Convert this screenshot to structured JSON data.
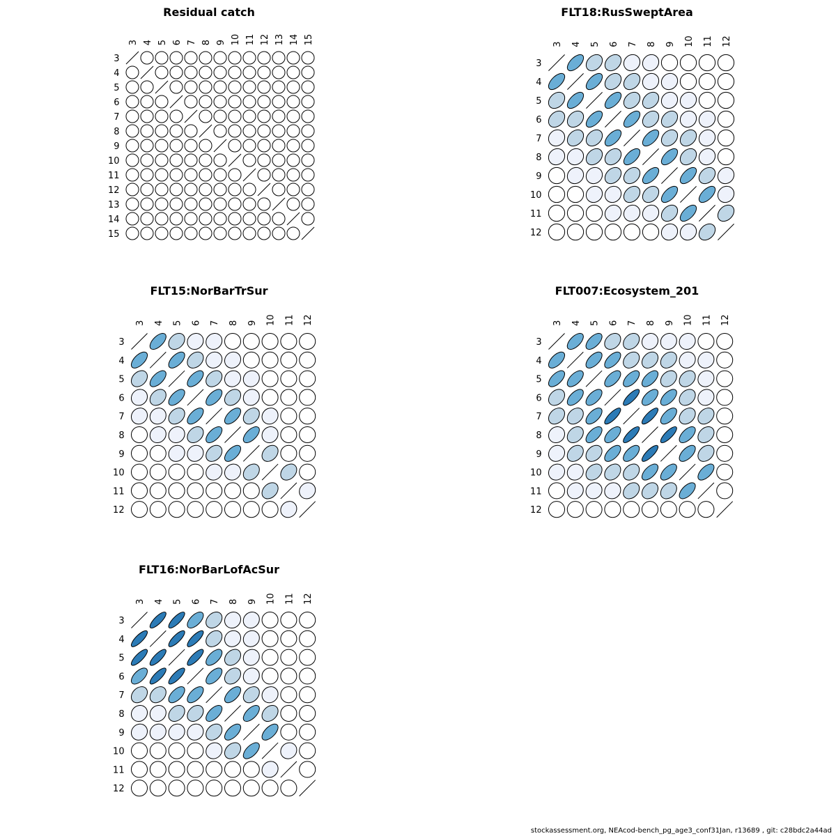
{
  "footer": "stockassessment.org, NEAcod-bench_pg_age3_conf31Jan, r13689 , git: c28bdc2a44ad",
  "chart_data": [
    {
      "type": "heatmap",
      "title": "Residual catch",
      "labels": [
        "3",
        "4",
        "5",
        "6",
        "7",
        "8",
        "9",
        "10",
        "11",
        "12",
        "13",
        "14",
        "15"
      ],
      "values": [
        [
          1,
          0,
          0,
          0,
          0,
          0,
          0,
          0,
          0,
          0,
          0,
          0,
          0
        ],
        [
          0,
          1,
          0,
          0,
          0,
          0,
          0,
          0,
          0,
          0,
          0,
          0,
          0
        ],
        [
          0,
          0,
          1,
          0,
          0,
          0,
          0,
          0,
          0,
          0,
          0,
          0,
          0
        ],
        [
          0,
          0,
          0,
          1,
          0,
          0,
          0,
          0,
          0,
          0,
          0,
          0,
          0
        ],
        [
          0,
          0,
          0,
          0,
          1,
          0,
          0,
          0,
          0,
          0,
          0,
          0,
          0
        ],
        [
          0,
          0,
          0,
          0,
          0,
          1,
          0,
          0,
          0,
          0,
          0,
          0,
          0
        ],
        [
          0,
          0,
          0,
          0,
          0,
          0,
          1,
          0,
          0,
          0,
          0,
          0,
          0
        ],
        [
          0,
          0,
          0,
          0,
          0,
          0,
          0,
          1,
          0,
          0,
          0,
          0,
          0
        ],
        [
          0,
          0,
          0,
          0,
          0,
          0,
          0,
          0,
          1,
          0,
          0,
          0,
          0
        ],
        [
          0,
          0,
          0,
          0,
          0,
          0,
          0,
          0,
          0,
          1,
          0,
          0,
          0
        ],
        [
          0,
          0,
          0,
          0,
          0,
          0,
          0,
          0,
          0,
          0,
          1,
          0,
          0
        ],
        [
          0,
          0,
          0,
          0,
          0,
          0,
          0,
          0,
          0,
          0,
          0,
          1,
          0
        ],
        [
          0,
          0,
          0,
          0,
          0,
          0,
          0,
          0,
          0,
          0,
          0,
          0,
          1
        ]
      ]
    },
    {
      "type": "heatmap",
      "title": "FLT18:RusSweptArea",
      "labels": [
        "3",
        "4",
        "5",
        "6",
        "7",
        "8",
        "9",
        "10",
        "11",
        "12"
      ],
      "values": [
        [
          1,
          0.6,
          0.3,
          0.3,
          0.1,
          0.1,
          0,
          0,
          0,
          0
        ],
        [
          0.6,
          1,
          0.6,
          0.3,
          0.3,
          0.1,
          0.1,
          0,
          0,
          0
        ],
        [
          0.3,
          0.6,
          1,
          0.6,
          0.3,
          0.3,
          0.1,
          0.1,
          0,
          0
        ],
        [
          0.3,
          0.3,
          0.6,
          1,
          0.6,
          0.3,
          0.3,
          0.1,
          0.1,
          0
        ],
        [
          0.1,
          0.3,
          0.3,
          0.6,
          1,
          0.6,
          0.3,
          0.3,
          0.1,
          0
        ],
        [
          0.1,
          0.1,
          0.3,
          0.3,
          0.6,
          1,
          0.6,
          0.3,
          0.1,
          0
        ],
        [
          0,
          0.1,
          0.1,
          0.3,
          0.3,
          0.6,
          1,
          0.6,
          0.3,
          0.1
        ],
        [
          0,
          0,
          0.1,
          0.1,
          0.3,
          0.3,
          0.6,
          1,
          0.6,
          0.1
        ],
        [
          0,
          0,
          0,
          0.1,
          0.1,
          0.1,
          0.3,
          0.6,
          1,
          0.3
        ],
        [
          0,
          0,
          0,
          0,
          0,
          0,
          0.1,
          0.1,
          0.3,
          1
        ]
      ]
    },
    {
      "type": "heatmap",
      "title": "FLT15:NorBarTrSur",
      "labels": [
        "3",
        "4",
        "5",
        "6",
        "7",
        "8",
        "9",
        "10",
        "11",
        "12"
      ],
      "values": [
        [
          1,
          0.6,
          0.3,
          0.1,
          0.1,
          0,
          0,
          0,
          0,
          0
        ],
        [
          0.6,
          1,
          0.6,
          0.3,
          0.1,
          0.1,
          0,
          0,
          0,
          0
        ],
        [
          0.3,
          0.6,
          1,
          0.6,
          0.3,
          0.1,
          0.1,
          0,
          0,
          0
        ],
        [
          0.1,
          0.3,
          0.6,
          1,
          0.6,
          0.3,
          0.1,
          0,
          0,
          0
        ],
        [
          0.1,
          0.1,
          0.3,
          0.6,
          1,
          0.6,
          0.3,
          0.1,
          0,
          0
        ],
        [
          0,
          0.1,
          0.1,
          0.3,
          0.6,
          1,
          0.6,
          0.1,
          0,
          0
        ],
        [
          0,
          0,
          0.1,
          0.1,
          0.3,
          0.6,
          1,
          0.3,
          0,
          0
        ],
        [
          0,
          0,
          0,
          0,
          0.1,
          0.1,
          0.3,
          1,
          0.3,
          0
        ],
        [
          0,
          0,
          0,
          0,
          0,
          0,
          0,
          0.3,
          1,
          0.1
        ],
        [
          0,
          0,
          0,
          0,
          0,
          0,
          0,
          0,
          0.1,
          1
        ]
      ]
    },
    {
      "type": "heatmap",
      "title": "FLT007:Ecosystem_201",
      "labels": [
        "3",
        "4",
        "5",
        "6",
        "7",
        "8",
        "9",
        "10",
        "11",
        "12"
      ],
      "values": [
        [
          1,
          0.6,
          0.6,
          0.3,
          0.3,
          0.1,
          0.1,
          0.1,
          0,
          0
        ],
        [
          0.6,
          1,
          0.6,
          0.6,
          0.3,
          0.3,
          0.3,
          0.1,
          0.1,
          0
        ],
        [
          0.6,
          0.6,
          1,
          0.6,
          0.6,
          0.6,
          0.3,
          0.3,
          0.1,
          0
        ],
        [
          0.3,
          0.6,
          0.6,
          1,
          0.8,
          0.6,
          0.6,
          0.3,
          0.1,
          0
        ],
        [
          0.3,
          0.3,
          0.6,
          0.8,
          1,
          0.8,
          0.6,
          0.3,
          0.3,
          0
        ],
        [
          0.1,
          0.3,
          0.6,
          0.6,
          0.8,
          1,
          0.8,
          0.6,
          0.3,
          0
        ],
        [
          0.1,
          0.3,
          0.3,
          0.6,
          0.6,
          0.8,
          1,
          0.6,
          0.3,
          0
        ],
        [
          0.1,
          0.1,
          0.3,
          0.3,
          0.3,
          0.6,
          0.6,
          1,
          0.6,
          0
        ],
        [
          0,
          0.1,
          0.1,
          0.1,
          0.3,
          0.3,
          0.3,
          0.6,
          1,
          0
        ],
        [
          0,
          0,
          0,
          0,
          0,
          0,
          0,
          0,
          0,
          1
        ]
      ]
    },
    {
      "type": "heatmap",
      "title": "FLT16:NorBarLofAcSur",
      "labels": [
        "3",
        "4",
        "5",
        "6",
        "7",
        "8",
        "9",
        "10",
        "11",
        "12"
      ],
      "values": [
        [
          1,
          0.8,
          0.8,
          0.6,
          0.3,
          0.1,
          0.1,
          0,
          0,
          0
        ],
        [
          0.8,
          1,
          0.8,
          0.8,
          0.3,
          0.1,
          0.1,
          0,
          0,
          0
        ],
        [
          0.8,
          0.8,
          1,
          0.8,
          0.6,
          0.3,
          0.1,
          0,
          0,
          0
        ],
        [
          0.6,
          0.8,
          0.8,
          1,
          0.6,
          0.3,
          0.1,
          0,
          0,
          0
        ],
        [
          0.3,
          0.3,
          0.6,
          0.6,
          1,
          0.6,
          0.3,
          0.1,
          0,
          0
        ],
        [
          0.1,
          0.1,
          0.3,
          0.3,
          0.6,
          1,
          0.6,
          0.3,
          0,
          0
        ],
        [
          0.1,
          0.1,
          0.1,
          0.1,
          0.3,
          0.6,
          1,
          0.6,
          0,
          0
        ],
        [
          0,
          0,
          0,
          0,
          0.1,
          0.3,
          0.6,
          1,
          0.1,
          0
        ],
        [
          0,
          0,
          0,
          0,
          0,
          0,
          0,
          0.1,
          1,
          0
        ],
        [
          0,
          0,
          0,
          0,
          0,
          0,
          0,
          0,
          0,
          1
        ]
      ]
    }
  ]
}
